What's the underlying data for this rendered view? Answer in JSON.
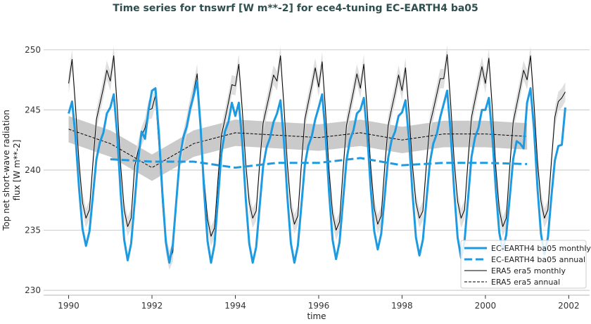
{
  "chart_data": {
    "type": "line",
    "title": "Time series for tnswrf [W m**-2] for ece4-tuning EC-EARTH4 ba05",
    "xlabel": "time",
    "ylabel": [
      "Top net short-wave radiation",
      "flux [W m**-2]"
    ],
    "xlim": [
      1989.4,
      2002.5
    ],
    "ylim": [
      229.6,
      251.8
    ],
    "xticks": [
      1990,
      1992,
      1994,
      1996,
      1998,
      2000,
      2002
    ],
    "yticks": [
      230,
      235,
      240,
      245,
      250
    ],
    "grid": "horizontal",
    "legend_placement": "lower-right",
    "colors": {
      "ecearth": "#1e9be0",
      "era5": "#000000",
      "band": "#c8c8c8",
      "title": "#2f4f4f"
    },
    "monthly_start_year": 1990,
    "series": [
      {
        "name": "EC-EARTH4 ba05 monthly",
        "style": "solid-thick",
        "values": [
          244.7,
          245.7,
          242.7,
          238.5,
          235.1,
          233.7,
          234.9,
          237.9,
          240.9,
          242.3,
          243.1,
          244.7,
          245.2,
          246.3,
          242.9,
          238.0,
          234.2,
          232.5,
          233.9,
          237.3,
          240.8,
          243.2,
          242.6,
          245.0,
          246.6,
          246.8,
          243.0,
          238.1,
          234.0,
          232.3,
          233.8,
          237.4,
          241.0,
          242.7,
          243.6,
          245.1,
          246.2,
          247.4,
          243.6,
          238.3,
          234.1,
          232.3,
          233.8,
          237.6,
          241.4,
          243.2,
          244.0,
          245.6,
          244.5,
          245.6,
          242.3,
          237.6,
          233.9,
          232.3,
          233.6,
          237.0,
          240.3,
          241.9,
          242.7,
          244.0,
          244.7,
          245.8,
          242.4,
          237.7,
          233.9,
          232.3,
          233.7,
          237.0,
          240.4,
          242.0,
          242.8,
          244.2,
          245.2,
          246.3,
          242.9,
          238.1,
          234.2,
          232.6,
          234.0,
          237.4,
          240.8,
          242.5,
          243.3,
          244.7,
          245.0,
          246.0,
          242.9,
          238.4,
          234.9,
          233.4,
          234.7,
          237.8,
          241.0,
          242.5,
          243.2,
          244.5,
          244.8,
          245.8,
          242.6,
          238.1,
          234.4,
          232.9,
          234.2,
          237.4,
          240.6,
          242.2,
          243.0,
          244.4,
          245.5,
          246.6,
          243.1,
          238.3,
          234.4,
          232.7,
          234.1,
          237.6,
          241.1,
          242.7,
          243.5,
          245.0,
          245.0,
          246.0,
          242.8,
          238.4,
          234.8,
          233.3,
          234.6,
          237.7,
          240.9,
          242.4,
          242.2,
          241.8,
          245.6,
          246.8,
          243.4,
          238.5,
          234.7,
          233.0,
          234.4,
          237.8,
          240.8,
          242.0,
          242.1,
          245.2
        ]
      },
      {
        "name": "EC-EARTH4 ba05 annual",
        "style": "dashed-thick",
        "x": [
          1991,
          1992,
          1993,
          1994,
          1995,
          1996,
          1997,
          1998,
          1999,
          2000,
          2001
        ],
        "values": [
          240.9,
          240.7,
          240.7,
          240.2,
          240.6,
          240.6,
          241.0,
          240.4,
          240.6,
          240.6,
          240.5
        ]
      },
      {
        "name": "ERA5 era5 monthly",
        "style": "solid-thin",
        "spread": 0.8,
        "values": [
          247.2,
          249.2,
          245.2,
          240.6,
          237.3,
          236.0,
          236.7,
          240.6,
          244.2,
          245.5,
          246.8,
          248.3,
          247.4,
          249.5,
          245.2,
          240.3,
          236.7,
          235.3,
          236.0,
          240.3,
          241.6,
          242.8,
          243.5,
          245.0,
          245.1,
          246.2,
          242.1,
          237.3,
          233.9,
          232.5,
          233.2,
          237.3,
          241.0,
          242.4,
          243.7,
          245.2,
          246.5,
          248.0,
          244.0,
          239.2,
          235.9,
          234.5,
          235.2,
          239.2,
          242.9,
          244.2,
          245.6,
          247.1,
          247.0,
          248.8,
          245.0,
          240.5,
          237.3,
          236.0,
          236.6,
          240.5,
          243.9,
          245.2,
          246.5,
          247.9,
          247.4,
          249.5,
          245.3,
          240.4,
          236.9,
          235.5,
          236.2,
          240.4,
          244.2,
          245.6,
          247.0,
          248.5,
          246.9,
          249.0,
          244.8,
          239.9,
          236.4,
          235.0,
          235.7,
          239.9,
          243.7,
          245.1,
          246.5,
          248.0,
          246.8,
          248.8,
          244.8,
          240.2,
          236.8,
          235.5,
          236.2,
          240.2,
          243.7,
          245.1,
          246.4,
          247.9,
          246.6,
          248.5,
          244.8,
          240.4,
          237.3,
          236.0,
          236.6,
          240.4,
          243.8,
          245.0,
          246.3,
          247.6,
          247.6,
          249.6,
          245.5,
          240.8,
          237.4,
          236.0,
          236.7,
          240.8,
          244.4,
          245.8,
          247.2,
          248.6,
          247.2,
          249.3,
          245.1,
          240.2,
          236.7,
          235.3,
          236.0,
          240.2,
          244.0,
          245.4,
          246.8,
          248.3,
          247.5,
          249.5,
          245.5,
          240.7,
          237.4,
          236.0,
          236.7,
          240.7,
          244.4,
          245.7,
          246.0,
          246.5
        ]
      },
      {
        "name": "ERA5 era5 annual",
        "style": "dashed-thin",
        "spread": 1.1,
        "x": [
          1990,
          1991,
          1992,
          1993,
          1994,
          1995,
          1996,
          1997,
          1998,
          1999,
          2000,
          2001
        ],
        "values": [
          243.4,
          242.2,
          240.2,
          242.2,
          243.1,
          242.9,
          242.7,
          243.1,
          242.5,
          243.0,
          243.0,
          242.8
        ]
      }
    ]
  }
}
